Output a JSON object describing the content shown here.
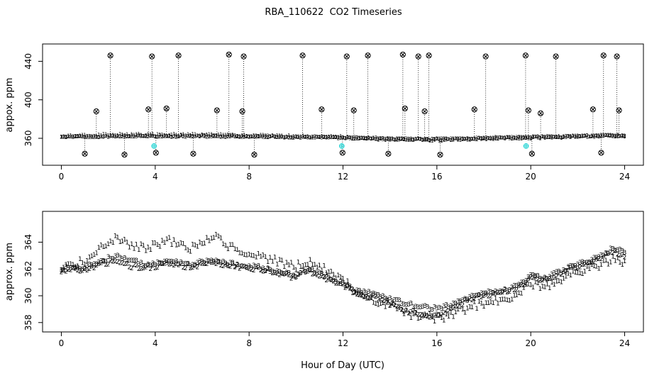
{
  "title": "RBA_110622  CO2 Timeseries",
  "colors": {
    "red": "#dd0000",
    "green": "#00aa00",
    "blue": "#2233bb",
    "cyan": "#00cccc",
    "axis": "#000000"
  },
  "chart_data": [
    {
      "id": "top",
      "type": "scatter",
      "ylabel": "appox. ppm",
      "xlim": [
        -0.8,
        24.8
      ],
      "ylim": [
        332,
        458
      ],
      "xticks": [
        0,
        4,
        8,
        12,
        16,
        20,
        24
      ],
      "yticks": [
        360,
        400,
        440
      ],
      "series": [
        {
          "name": "1",
          "glyph": "1",
          "color": "#dd0000",
          "x0": 0,
          "dx": 1,
          "spread": 1.3,
          "values": [
            362.0,
            362.6,
            363.6,
            363.7,
            363.6,
            363.4,
            363.9,
            363.4,
            362.7,
            362.3,
            361.9,
            361.7,
            361.1,
            359.8,
            359.1,
            358.5,
            358.3,
            359.0,
            359.6,
            360.1,
            360.9,
            361.3,
            361.9,
            362.6,
            362.5
          ]
        },
        {
          "name": "2",
          "glyph": "2",
          "color": "#00aa00",
          "x0": 0,
          "dx": 1,
          "spread": 0.9,
          "values": [
            361.4,
            361.7,
            362.1,
            362.3,
            362.2,
            362.1,
            362.3,
            362.1,
            362.0,
            361.7,
            361.3,
            361.2,
            360.7,
            360.0,
            359.4,
            358.9,
            358.7,
            359.3,
            360.0,
            360.4,
            361.2,
            361.5,
            362.1,
            362.8,
            362.8
          ]
        },
        {
          "name": "3",
          "glyph": "3",
          "color": "#2233bb",
          "x0": 0,
          "dx": 1,
          "spread": 1.0,
          "values": [
            361.5,
            361.8,
            362.3,
            362.5,
            362.4,
            362.3,
            362.5,
            362.3,
            362.2,
            361.9,
            361.5,
            361.4,
            360.9,
            360.2,
            359.7,
            359.2,
            359.0,
            359.6,
            360.2,
            360.6,
            361.4,
            361.7,
            362.3,
            363.0,
            363.0
          ]
        }
      ],
      "spikes": {
        "high": [
          {
            "x": 2.09,
            "y": 446
          },
          {
            "x": 3.86,
            "y": 445
          },
          {
            "x": 4.99,
            "y": 446
          },
          {
            "x": 7.14,
            "y": 447
          },
          {
            "x": 7.77,
            "y": 445
          },
          {
            "x": 10.28,
            "y": 446
          },
          {
            "x": 12.16,
            "y": 445
          },
          {
            "x": 13.06,
            "y": 446
          },
          {
            "x": 14.55,
            "y": 447
          },
          {
            "x": 15.21,
            "y": 445
          },
          {
            "x": 15.66,
            "y": 446
          },
          {
            "x": 18.08,
            "y": 445
          },
          {
            "x": 19.78,
            "y": 446
          },
          {
            "x": 21.07,
            "y": 445
          },
          {
            "x": 23.1,
            "y": 446
          },
          {
            "x": 23.67,
            "y": 445
          }
        ],
        "mid": [
          {
            "x": 1.49,
            "y": 388
          },
          {
            "x": 3.71,
            "y": 390
          },
          {
            "x": 4.48,
            "y": 391
          },
          {
            "x": 6.63,
            "y": 389
          },
          {
            "x": 7.71,
            "y": 388
          },
          {
            "x": 11.09,
            "y": 390
          },
          {
            "x": 12.46,
            "y": 389
          },
          {
            "x": 14.64,
            "y": 391
          },
          {
            "x": 15.48,
            "y": 388
          },
          {
            "x": 17.6,
            "y": 390
          },
          {
            "x": 19.9,
            "y": 389
          },
          {
            "x": 20.42,
            "y": 386
          },
          {
            "x": 22.65,
            "y": 390
          },
          {
            "x": 23.76,
            "y": 389
          }
        ],
        "low": [
          {
            "x": 1.0,
            "y": 344
          },
          {
            "x": 2.69,
            "y": 343
          },
          {
            "x": 4.03,
            "y": 345
          },
          {
            "x": 5.62,
            "y": 344
          },
          {
            "x": 8.22,
            "y": 343
          },
          {
            "x": 11.98,
            "y": 345
          },
          {
            "x": 13.93,
            "y": 344
          },
          {
            "x": 16.14,
            "y": 343
          },
          {
            "x": 20.05,
            "y": 344
          },
          {
            "x": 23.0,
            "y": 345
          }
        ]
      },
      "cyan_markers": [
        {
          "x": 3.95,
          "y": 352
        },
        {
          "x": 11.95,
          "y": 352
        },
        {
          "x": 19.8,
          "y": 352
        }
      ]
    },
    {
      "id": "bottom",
      "type": "scatter",
      "ylabel": "approx. ppm",
      "xlabel": "Hour of Day (UTC)",
      "xlim": [
        -0.8,
        24.8
      ],
      "ylim": [
        357.3,
        366.3
      ],
      "xticks": [
        0,
        4,
        8,
        12,
        16,
        20,
        24
      ],
      "yticks": [
        358,
        360,
        362,
        364
      ],
      "series": [
        {
          "name": "1",
          "glyph": "1",
          "color": "#dd0000",
          "x0": 0,
          "dx": 0.5,
          "spread": 0.3,
          "values": [
            362.2,
            362.4,
            362.6,
            363.3,
            364.0,
            364.3,
            363.8,
            363.6,
            363.7,
            364.2,
            363.9,
            363.6,
            364.0,
            364.5,
            363.8,
            363.5,
            363.3,
            363.0,
            362.7,
            362.4,
            362.2,
            362.6,
            362.2,
            361.7,
            361.2,
            360.3,
            359.9,
            359.6,
            359.3,
            358.9,
            358.6,
            358.4,
            358.3,
            358.6,
            358.9,
            359.2,
            359.5,
            359.7,
            359.9,
            360.2,
            360.9,
            360.7,
            361.0,
            361.4,
            361.7,
            362.0,
            362.3,
            362.7,
            362.4
          ]
        },
        {
          "name": "2",
          "glyph": "2",
          "color": "#00aa00",
          "x0": 0,
          "dx": 0.5,
          "spread": 0.18,
          "values": [
            361.9,
            362.0,
            362.0,
            362.3,
            362.5,
            362.4,
            362.2,
            362.1,
            362.2,
            362.5,
            362.3,
            362.2,
            362.4,
            362.5,
            362.3,
            362.2,
            362.1,
            362.0,
            361.8,
            361.6,
            361.4,
            361.9,
            361.6,
            361.2,
            360.8,
            360.3,
            360.0,
            359.8,
            359.4,
            359.0,
            358.8,
            358.6,
            358.5,
            359.0,
            359.4,
            359.8,
            360.1,
            360.2,
            360.4,
            360.7,
            361.4,
            361.2,
            361.5,
            361.9,
            362.2,
            362.5,
            362.9,
            363.3,
            363.0
          ]
        },
        {
          "name": "3",
          "glyph": "3",
          "color": "#2233bb",
          "x0": 0,
          "dx": 0.5,
          "spread": 0.15,
          "values": [
            362.0,
            362.2,
            362.1,
            362.4,
            362.8,
            362.9,
            362.6,
            362.4,
            362.4,
            362.6,
            362.4,
            362.3,
            362.5,
            362.6,
            362.4,
            362.3,
            362.2,
            362.1,
            361.9,
            361.7,
            361.5,
            362.0,
            361.7,
            361.3,
            360.9,
            360.4,
            360.2,
            360.1,
            359.8,
            359.5,
            359.3,
            359.2,
            359.0,
            359.3,
            359.6,
            359.9,
            360.2,
            360.3,
            360.5,
            360.8,
            361.5,
            361.3,
            361.6,
            362.0,
            362.3,
            362.6,
            363.0,
            363.5,
            363.2
          ]
        }
      ]
    }
  ]
}
